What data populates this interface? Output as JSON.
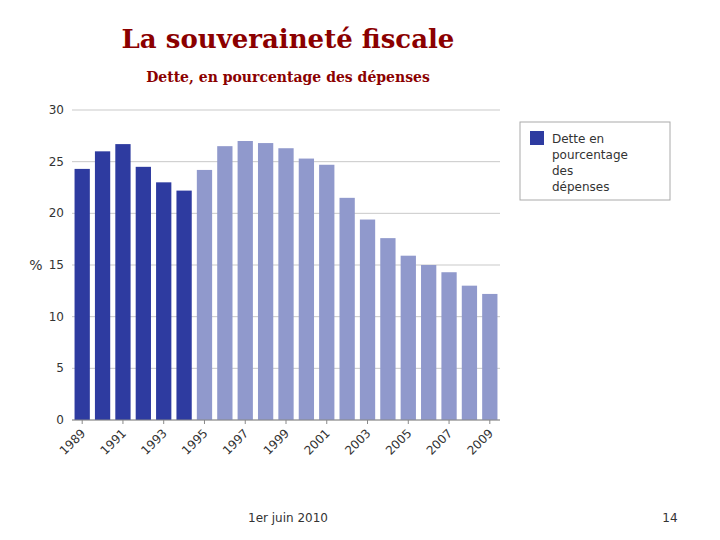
{
  "chart_data": {
    "type": "bar",
    "title": "La souveraineté fiscale",
    "subtitle": "Dette, en pourcentage des dépenses",
    "ylabel": "%",
    "categories": [
      "1989",
      null,
      "1991",
      null,
      "1993",
      null,
      "1995",
      null,
      "1997",
      null,
      "1999",
      null,
      "2001",
      null,
      "2003",
      null,
      "2005",
      null,
      "2007",
      null,
      "2009"
    ],
    "series": [
      {
        "name": "Dette en\npourcentage\ndes\ndépenses",
        "color": "#2E3BA0",
        "colors": [
          "#2E3BA0",
          "#2E3BA0",
          "#2E3BA0",
          "#2E3BA0",
          "#2E3BA0",
          "#2E3BA0",
          "#9099CC",
          "#9099CC",
          "#9099CC",
          "#9099CC",
          "#9099CC",
          "#9099CC",
          "#9099CC",
          "#9099CC",
          "#9099CC",
          "#9099CC",
          "#9099CC",
          "#9099CC",
          "#9099CC",
          "#9099CC",
          "#9099CC"
        ],
        "values": [
          24.3,
          26.0,
          26.7,
          24.5,
          23.0,
          22.2,
          24.2,
          26.5,
          27.0,
          26.8,
          26.3,
          25.3,
          24.7,
          21.5,
          19.4,
          17.6,
          15.9,
          15.0,
          14.3,
          13.0,
          12.2
        ]
      }
    ],
    "ylim": [
      0,
      30
    ],
    "yticks": [
      0,
      5,
      10,
      15,
      20,
      25,
      30
    ],
    "grid": true,
    "legend": "right",
    "annotations": [
      "1er juin 2010",
      "14"
    ]
  }
}
